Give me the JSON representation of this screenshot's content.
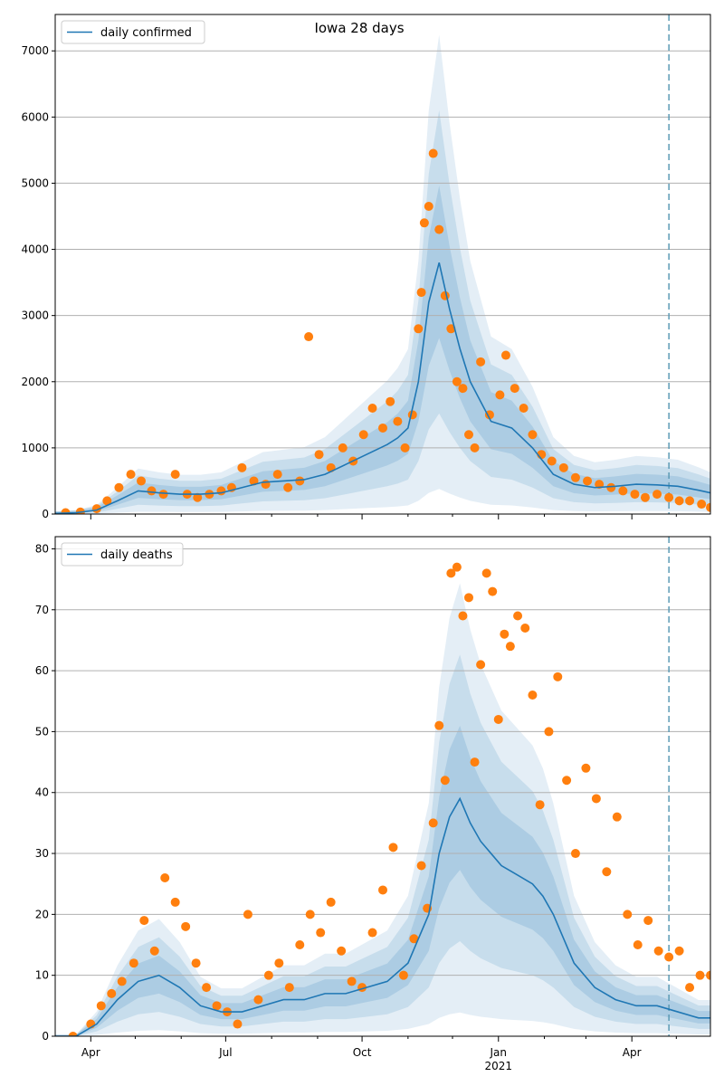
{
  "figure_title": "Iowa 28 days",
  "colors": {
    "model_line": "#1f77b4",
    "observed_points": "#ff7f0e",
    "band": "#1f77b4",
    "grid": "#b0b0b0",
    "cutoff_line": "#5b9ab5"
  },
  "x_ticks": {
    "major": [
      {
        "date": "2020-04-01",
        "label": "Apr"
      },
      {
        "date": "2020-07-01",
        "label": "Jul"
      },
      {
        "date": "2020-10-01",
        "label": "Oct"
      },
      {
        "date": "2021-01-01",
        "label": "Jan"
      },
      {
        "date": "2021-04-01",
        "label": "Apr"
      }
    ],
    "year_label": "2021",
    "minor": [
      "2020-05-01",
      "2020-06-01",
      "2020-08-01",
      "2020-09-01",
      "2020-11-01",
      "2020-12-01",
      "2021-02-01",
      "2021-03-01",
      "2021-05-01"
    ]
  },
  "chart_data": [
    {
      "type": "line",
      "title": "Iowa 28 days",
      "xlim": [
        "2020-03-08",
        "2021-05-24"
      ],
      "ylim": [
        0,
        7550
      ],
      "yticks": [
        0,
        1000,
        2000,
        3000,
        4000,
        5000,
        6000,
        7000
      ],
      "grid": "horizontal",
      "legend_position": "top-left",
      "cutoff_date": "2021-04-26",
      "series": [
        {
          "name": "daily confirmed",
          "kind": "model-median",
          "x": [
            "2020-03-08",
            "2020-03-22",
            "2020-04-05",
            "2020-04-19",
            "2020-05-03",
            "2020-05-17",
            "2020-05-31",
            "2020-06-14",
            "2020-06-28",
            "2020-07-12",
            "2020-07-26",
            "2020-08-09",
            "2020-08-23",
            "2020-09-06",
            "2020-09-20",
            "2020-10-04",
            "2020-10-18",
            "2020-10-25",
            "2020-11-01",
            "2020-11-08",
            "2020-11-15",
            "2020-11-22",
            "2020-11-29",
            "2020-12-06",
            "2020-12-13",
            "2020-12-20",
            "2020-12-27",
            "2021-01-10",
            "2021-01-24",
            "2021-02-07",
            "2021-02-21",
            "2021-03-07",
            "2021-03-21",
            "2021-04-04",
            "2021-04-18",
            "2021-05-02",
            "2021-05-16",
            "2021-05-24"
          ],
          "y": [
            10,
            20,
            60,
            200,
            350,
            320,
            300,
            300,
            320,
            400,
            480,
            500,
            520,
            600,
            750,
            900,
            1050,
            1150,
            1300,
            2000,
            3200,
            3800,
            3100,
            2500,
            2000,
            1700,
            1400,
            1300,
            1000,
            600,
            450,
            400,
            420,
            450,
            440,
            420,
            360,
            320
          ]
        },
        {
          "name": "",
          "kind": "observed",
          "x": [
            "2020-03-15",
            "2020-03-25",
            "2020-04-05",
            "2020-04-12",
            "2020-04-20",
            "2020-04-28",
            "2020-05-05",
            "2020-05-12",
            "2020-05-20",
            "2020-05-28",
            "2020-06-05",
            "2020-06-12",
            "2020-06-20",
            "2020-06-28",
            "2020-07-05",
            "2020-07-12",
            "2020-07-20",
            "2020-07-28",
            "2020-08-05",
            "2020-08-12",
            "2020-08-20",
            "2020-08-26",
            "2020-09-02",
            "2020-09-10",
            "2020-09-18",
            "2020-09-25",
            "2020-10-02",
            "2020-10-08",
            "2020-10-15",
            "2020-10-20",
            "2020-10-25",
            "2020-10-30",
            "2020-11-04",
            "2020-11-08",
            "2020-11-10",
            "2020-11-12",
            "2020-11-15",
            "2020-11-18",
            "2020-11-22",
            "2020-11-26",
            "2020-11-30",
            "2020-12-04",
            "2020-12-08",
            "2020-12-12",
            "2020-12-16",
            "2020-12-20",
            "2020-12-26",
            "2021-01-02",
            "2021-01-06",
            "2021-01-12",
            "2021-01-18",
            "2021-01-24",
            "2021-01-30",
            "2021-02-06",
            "2021-02-14",
            "2021-02-22",
            "2021-03-02",
            "2021-03-10",
            "2021-03-18",
            "2021-03-26",
            "2021-04-03",
            "2021-04-10",
            "2021-04-18",
            "2021-04-26",
            "2021-05-03",
            "2021-05-10",
            "2021-05-18",
            "2021-05-24"
          ],
          "y": [
            20,
            30,
            80,
            200,
            400,
            600,
            500,
            350,
            300,
            600,
            300,
            250,
            300,
            350,
            400,
            700,
            500,
            450,
            600,
            400,
            500,
            2680,
            900,
            700,
            1000,
            800,
            1200,
            1600,
            1300,
            1700,
            1400,
            1000,
            1500,
            2800,
            3350,
            4400,
            4650,
            5450,
            4300,
            3300,
            2800,
            2000,
            1900,
            1200,
            1000,
            2300,
            1500,
            1800,
            2400,
            1900,
            1600,
            1200,
            900,
            800,
            700,
            550,
            500,
            450,
            400,
            350,
            300,
            250,
            300,
            250,
            200,
            200,
            150,
            100
          ]
        }
      ]
    },
    {
      "type": "line",
      "title": "",
      "xlim": [
        "2020-03-08",
        "2021-05-24"
      ],
      "ylim": [
        0,
        82
      ],
      "yticks": [
        0,
        10,
        20,
        30,
        40,
        50,
        60,
        70,
        80
      ],
      "grid": "horizontal",
      "legend_position": "top-left",
      "cutoff_date": "2021-04-26",
      "series": [
        {
          "name": "daily deaths",
          "kind": "model-median",
          "x": [
            "2020-03-08",
            "2020-03-22",
            "2020-04-05",
            "2020-04-19",
            "2020-05-03",
            "2020-05-17",
            "2020-05-31",
            "2020-06-14",
            "2020-06-28",
            "2020-07-12",
            "2020-07-26",
            "2020-08-09",
            "2020-08-23",
            "2020-09-06",
            "2020-09-20",
            "2020-10-04",
            "2020-10-18",
            "2020-11-01",
            "2020-11-15",
            "2020-11-22",
            "2020-11-29",
            "2020-12-06",
            "2020-12-13",
            "2020-12-20",
            "2020-12-27",
            "2021-01-03",
            "2021-01-10",
            "2021-01-17",
            "2021-01-24",
            "2021-01-31",
            "2021-02-07",
            "2021-02-14",
            "2021-02-21",
            "2021-03-07",
            "2021-03-21",
            "2021-04-04",
            "2021-04-18",
            "2021-05-02",
            "2021-05-16",
            "2021-05-24"
          ],
          "y": [
            0,
            0,
            2,
            6,
            9,
            10,
            8,
            5,
            4,
            4,
            5,
            6,
            6,
            7,
            7,
            8,
            9,
            12,
            20,
            30,
            36,
            39,
            35,
            32,
            30,
            28,
            27,
            26,
            25,
            23,
            20,
            16,
            12,
            8,
            6,
            5,
            5,
            4,
            3,
            3
          ]
        },
        {
          "name": "",
          "kind": "observed",
          "x": [
            "2020-03-20",
            "2020-04-01",
            "2020-04-08",
            "2020-04-15",
            "2020-04-22",
            "2020-04-30",
            "2020-05-07",
            "2020-05-14",
            "2020-05-21",
            "2020-05-28",
            "2020-06-04",
            "2020-06-11",
            "2020-06-18",
            "2020-06-25",
            "2020-07-02",
            "2020-07-09",
            "2020-07-16",
            "2020-07-23",
            "2020-07-30",
            "2020-08-06",
            "2020-08-13",
            "2020-08-20",
            "2020-08-27",
            "2020-09-03",
            "2020-09-10",
            "2020-09-17",
            "2020-09-24",
            "2020-10-01",
            "2020-10-08",
            "2020-10-15",
            "2020-10-22",
            "2020-10-29",
            "2020-11-05",
            "2020-11-10",
            "2020-11-14",
            "2020-11-18",
            "2020-11-22",
            "2020-11-26",
            "2020-11-30",
            "2020-12-04",
            "2020-12-08",
            "2020-12-12",
            "2020-12-16",
            "2020-12-20",
            "2020-12-24",
            "2020-12-28",
            "2021-01-01",
            "2021-01-05",
            "2021-01-09",
            "2021-01-14",
            "2021-01-19",
            "2021-01-24",
            "2021-01-29",
            "2021-02-04",
            "2021-02-10",
            "2021-02-16",
            "2021-02-22",
            "2021-03-01",
            "2021-03-08",
            "2021-03-15",
            "2021-03-22",
            "2021-03-29",
            "2021-04-05",
            "2021-04-12",
            "2021-04-19",
            "2021-04-26",
            "2021-05-03",
            "2021-05-10",
            "2021-05-17",
            "2021-05-24"
          ],
          "y": [
            0,
            2,
            5,
            7,
            9,
            12,
            19,
            14,
            26,
            22,
            18,
            12,
            8,
            5,
            4,
            2,
            20,
            6,
            10,
            12,
            8,
            15,
            20,
            17,
            22,
            14,
            9,
            8,
            17,
            24,
            31,
            10,
            16,
            28,
            21,
            35,
            51,
            42,
            76,
            77,
            69,
            72,
            45,
            61,
            76,
            73,
            52,
            66,
            64,
            69,
            67,
            56,
            38,
            50,
            59,
            42,
            30,
            44,
            39,
            27,
            36,
            20,
            15,
            19,
            14,
            13,
            14,
            8,
            10,
            10
          ]
        }
      ]
    }
  ]
}
